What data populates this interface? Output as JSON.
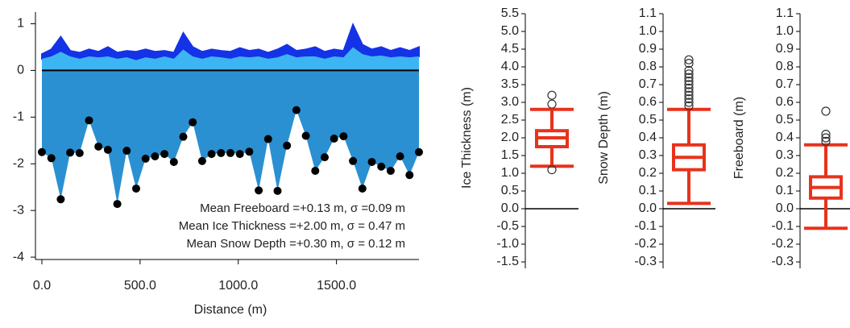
{
  "chart_data": [
    {
      "type": "profile",
      "xlabel": "Distance (m)",
      "x": [
        0,
        48,
        96,
        144,
        192,
        240,
        288,
        336,
        384,
        432,
        480,
        528,
        576,
        624,
        672,
        720,
        768,
        816,
        864,
        912,
        960,
        1008,
        1056,
        1104,
        1152,
        1200,
        1248,
        1296,
        1344,
        1392,
        1440,
        1488,
        1536,
        1584,
        1632,
        1680,
        1728,
        1776,
        1824,
        1872,
        1920
      ],
      "series": [
        {
          "color": "#1432e6",
          "values": [
            0.35,
            0.45,
            0.72,
            0.42,
            0.38,
            0.45,
            0.4,
            0.5,
            0.38,
            0.42,
            0.4,
            0.45,
            0.4,
            0.42,
            0.38,
            0.8,
            0.5,
            0.4,
            0.45,
            0.42,
            0.4,
            0.48,
            0.42,
            0.45,
            0.38,
            0.45,
            0.55,
            0.42,
            0.45,
            0.5,
            0.4,
            0.45,
            0.42,
            0.98,
            0.55,
            0.45,
            0.5,
            0.42,
            0.48,
            0.42,
            0.5
          ]
        },
        {
          "color": "#3db5f2",
          "values": [
            0.25,
            0.3,
            0.4,
            0.3,
            0.25,
            0.3,
            0.28,
            0.3,
            0.25,
            0.28,
            0.22,
            0.28,
            0.25,
            0.3,
            0.25,
            0.45,
            0.3,
            0.25,
            0.3,
            0.28,
            0.25,
            0.3,
            0.28,
            0.3,
            0.25,
            0.28,
            0.35,
            0.28,
            0.3,
            0.3,
            0.25,
            0.3,
            0.28,
            0.5,
            0.35,
            0.3,
            0.32,
            0.28,
            0.3,
            0.28,
            0.3
          ]
        },
        {
          "color": "#2a90d2",
          "values": [
            -1.75,
            -1.88,
            -2.76,
            -1.76,
            -1.77,
            -1.07,
            -1.63,
            -1.7,
            -2.86,
            -1.72,
            -2.53,
            -1.89,
            -1.84,
            -1.79,
            -1.96,
            -1.42,
            -1.11,
            -1.94,
            -1.79,
            -1.77,
            -1.77,
            -1.79,
            -1.74,
            -2.57,
            -1.47,
            -2.58,
            -1.61,
            -0.85,
            -1.4,
            -2.15,
            -1.86,
            -1.46,
            -1.41,
            -1.94,
            -2.53,
            -1.96,
            -2.06,
            -2.15,
            -1.84,
            -2.24,
            -1.75
          ]
        }
      ],
      "xlim": [
        0,
        1920
      ],
      "xticks": [
        {
          "value": 0,
          "label": "0.0"
        },
        {
          "value": 500,
          "label": "500.0"
        },
        {
          "value": 1000,
          "label": "1000.0"
        },
        {
          "value": 1500,
          "label": "1500.0"
        }
      ],
      "ylim": [
        -4.05,
        1.25
      ],
      "yticks": [
        1,
        0,
        -1,
        -2,
        -3,
        -4
      ],
      "annotations": [
        "Mean Freeboard =+0.13 m, σ =0.09 m",
        "Mean Ice Thickness =+2.00 m, σ = 0.47 m",
        "Mean Snow Depth =+0.30 m, σ = 0.12 m"
      ]
    },
    {
      "type": "box",
      "ylabel": "Ice Thickness (m)",
      "color": "#e8321c",
      "ylim": [
        -1.5,
        5.5
      ],
      "yticks": [
        5.5,
        {
          "value": 5,
          "label": "5.0"
        },
        4.5,
        {
          "value": 4,
          "label": "4.0"
        },
        3.5,
        {
          "value": 3,
          "label": "3.0"
        },
        2.5,
        {
          "value": 2,
          "label": "2.0"
        },
        1.5,
        {
          "value": 1,
          "label": "1.0"
        },
        0.5,
        {
          "value": 0,
          "label": "0.0"
        },
        -0.5,
        {
          "value": -1,
          "label": "-1.0"
        },
        -1.5
      ],
      "whisker_low": 1.2,
      "q1": 1.75,
      "median": 2.0,
      "q3": 2.2,
      "whisker_high": 2.8,
      "outliers": [
        3.2,
        2.95,
        1.1
      ]
    },
    {
      "type": "box",
      "ylabel": "Snow Depth (m)",
      "color": "#e8321c",
      "ylim": [
        -0.3,
        1.1
      ],
      "yticks": [
        1.1,
        {
          "value": 1,
          "label": "1.0"
        },
        0.9,
        0.8,
        0.7,
        0.6,
        0.5,
        0.4,
        0.3,
        0.2,
        0.1,
        {
          "value": 0,
          "label": "0.0"
        },
        -0.1,
        -0.2,
        -0.3
      ],
      "whisker_low": 0.03,
      "q1": 0.22,
      "median": 0.29,
      "q3": 0.36,
      "whisker_high": 0.56,
      "outliers": [
        0.58,
        0.6,
        0.62,
        0.64,
        0.66,
        0.68,
        0.7,
        0.72,
        0.74,
        0.76,
        0.78,
        0.82,
        0.84
      ]
    },
    {
      "type": "box",
      "ylabel": "Freeboard (m)",
      "color": "#e8321c",
      "ylim": [
        -0.3,
        1.1
      ],
      "yticks": [
        1.1,
        {
          "value": 1,
          "label": "1.0"
        },
        0.9,
        0.8,
        0.7,
        0.6,
        0.5,
        0.4,
        0.3,
        0.2,
        0.1,
        {
          "value": 0,
          "label": "0.0"
        },
        -0.1,
        -0.2,
        -0.3
      ],
      "whisker_low": -0.11,
      "q1": 0.06,
      "median": 0.12,
      "q3": 0.18,
      "whisker_high": 0.36,
      "outliers": [
        0.38,
        0.4,
        0.42,
        0.55
      ]
    }
  ]
}
